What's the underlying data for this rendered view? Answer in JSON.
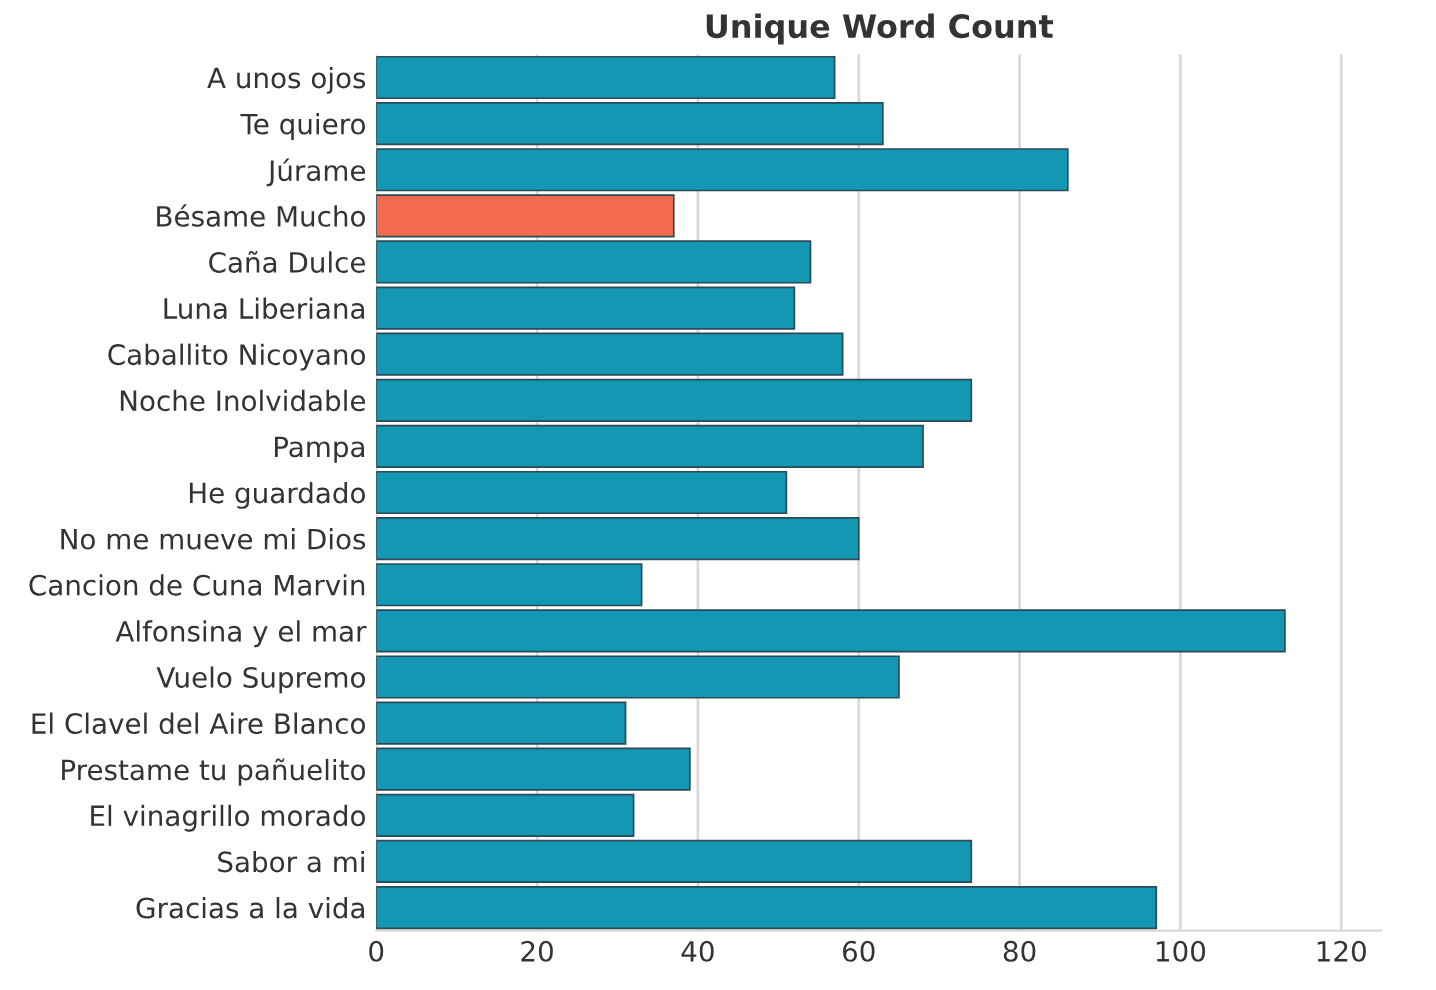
{
  "chart_data": {
    "type": "bar",
    "orientation": "horizontal",
    "title": "Unique Word Count",
    "categories": [
      "A unos ojos",
      "Te quiero",
      "Júrame",
      "Bésame Mucho",
      "Caña Dulce",
      "Luna Liberiana",
      "Caballito Nicoyano",
      "Noche Inolvidable",
      "Pampa",
      "He guardado",
      "No me mueve mi Dios",
      "Cancion de Cuna Marvin",
      "Alfonsina y el mar",
      "Vuelo Supremo",
      "El Clavel del Aire Blanco",
      "Prestame tu pañuelito",
      "El vinagrillo morado",
      "Sabor a mi",
      "Gracias a la vida"
    ],
    "values": [
      57,
      63,
      86,
      37,
      54,
      52,
      58,
      74,
      68,
      51,
      60,
      33,
      113,
      65,
      31,
      39,
      32,
      74,
      97
    ],
    "colors": [
      "#1497b3",
      "#1497b3",
      "#1497b3",
      "#f4694f",
      "#1497b3",
      "#1497b3",
      "#1497b3",
      "#1497b3",
      "#1497b3",
      "#1497b3",
      "#1497b3",
      "#1497b3",
      "#1497b3",
      "#1497b3",
      "#1497b3",
      "#1497b3",
      "#1497b3",
      "#1497b3",
      "#1497b3"
    ],
    "xlim": [
      0,
      125
    ],
    "xticks": [
      0,
      20,
      40,
      60,
      80,
      100,
      120
    ],
    "grid": "x"
  }
}
